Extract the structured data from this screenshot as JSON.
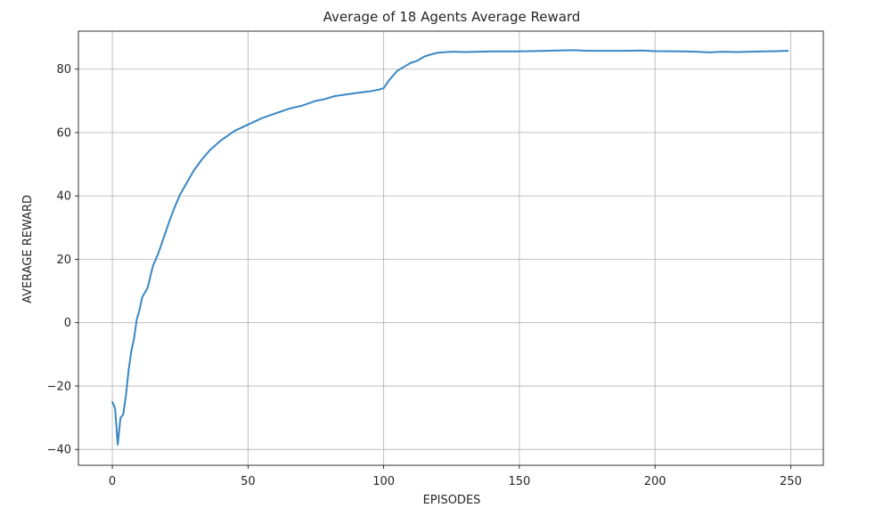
{
  "chart_data": {
    "type": "line",
    "title": "Average of 18 Agents Average Reward",
    "xlabel": "EPISODES",
    "ylabel": "AVERAGE REWARD",
    "xlim": [
      -12.5,
      262
    ],
    "ylim": [
      -45,
      92
    ],
    "xticks": [
      0,
      50,
      100,
      150,
      200,
      250
    ],
    "yticks": [
      -40,
      -20,
      0,
      20,
      40,
      60,
      80
    ],
    "xtick_labels": [
      "0",
      "50",
      "100",
      "150",
      "200",
      "250"
    ],
    "ytick_labels": [
      "−40",
      "−20",
      "0",
      "20",
      "40",
      "60",
      "80"
    ],
    "grid": true,
    "line_color": "#3a87c4",
    "series": [
      {
        "x": [
          0,
          1,
          2,
          3,
          4,
          5,
          6,
          7,
          8,
          9,
          10,
          11,
          13,
          15,
          17,
          19,
          21,
          23,
          25,
          27,
          30,
          33,
          36,
          40,
          45,
          50,
          55,
          60,
          65,
          70,
          75,
          78,
          82,
          86,
          90,
          95,
          98,
          100,
          102,
          105,
          108,
          110,
          112,
          115,
          118,
          120,
          125,
          130,
          135,
          140,
          150,
          160,
          170,
          175,
          180,
          190,
          195,
          200,
          210,
          215,
          220,
          225,
          230,
          235,
          240,
          245,
          249
        ],
        "values": [
          -25,
          -27,
          -38.5,
          -30,
          -29,
          -23,
          -15,
          -9,
          -5,
          1,
          4,
          8,
          11,
          18,
          22,
          27,
          32,
          36.5,
          40.5,
          43.5,
          48,
          51.5,
          54.5,
          57.5,
          60.5,
          62.5,
          64.5,
          66,
          67.5,
          68.5,
          70,
          70.5,
          71.5,
          72,
          72.5,
          73,
          73.5,
          74,
          76.5,
          79.5,
          81,
          82,
          82.5,
          84,
          84.8,
          85.2,
          85.5,
          85.4,
          85.5,
          85.6,
          85.6,
          85.8,
          86,
          85.8,
          85.8,
          85.8,
          85.9,
          85.7,
          85.6,
          85.5,
          85.3,
          85.5,
          85.4,
          85.5,
          85.6,
          85.7,
          85.8
        ]
      }
    ]
  }
}
